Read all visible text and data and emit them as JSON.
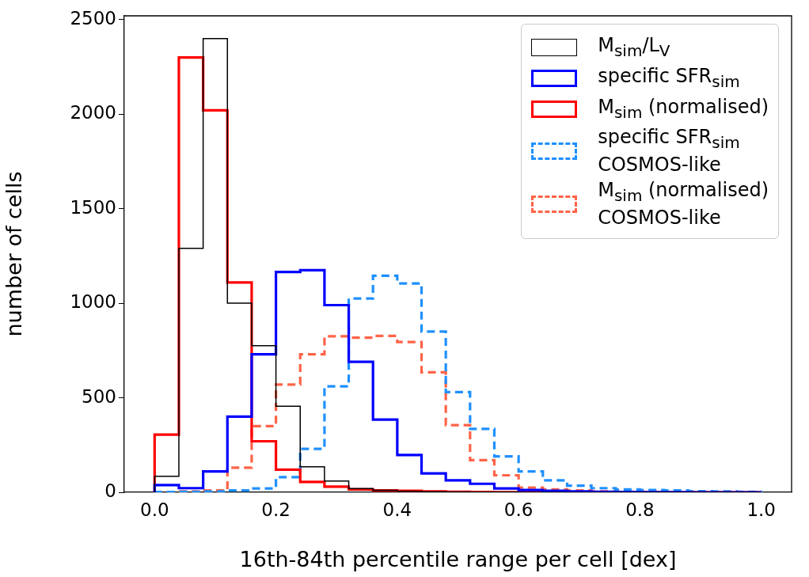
{
  "chart_data": {
    "type": "histogram",
    "xlabel": "16th-84th percentile range per cell [dex]",
    "ylabel": "number of cells",
    "bins": [
      0,
      0.04,
      0.08,
      0.12,
      0.16,
      0.2,
      0.24,
      0.28,
      0.32,
      0.36,
      0.4,
      0.44,
      0.48,
      0.52,
      0.56,
      0.6,
      0.64,
      0.68,
      0.72,
      0.76,
      0.8,
      0.84,
      0.88,
      0.92,
      0.96,
      1.0
    ],
    "series": [
      {
        "name": "M$_{sim}$/L$_{V}$",
        "color": "#000000",
        "line_style": "solid",
        "values": [
          85,
          1290,
          2400,
          1000,
          775,
          455,
          135,
          60,
          20,
          10,
          5,
          3,
          2,
          1,
          1,
          0,
          0,
          0,
          0,
          0,
          0,
          0,
          0,
          0,
          0
        ]
      },
      {
        "name": "specific SFR$_{sim}$",
        "color": "#0000ff",
        "line_style": "solid",
        "values": [
          38,
          22,
          110,
          400,
          730,
          1165,
          1175,
          990,
          690,
          385,
          197,
          100,
          63,
          45,
          20,
          12,
          8,
          5,
          3,
          2,
          1,
          1,
          0,
          0,
          0
        ]
      },
      {
        "name": "M$_{sim}$ (normalised)",
        "color": "#ff0000",
        "line_style": "solid",
        "values": [
          305,
          2300,
          2020,
          1110,
          270,
          120,
          55,
          30,
          15,
          10,
          8,
          5,
          3,
          2,
          1,
          1,
          0,
          0,
          0,
          0,
          0,
          0,
          0,
          0,
          0
        ]
      },
      {
        "name": "specific SFR$_{sim}$\nCOSMOS-like",
        "color": "#1e90ff",
        "line_style": "dashed",
        "values": [
          2,
          3,
          5,
          10,
          20,
          80,
          230,
          560,
          1025,
          1145,
          1105,
          850,
          530,
          335,
          190,
          110,
          63,
          35,
          22,
          15,
          12,
          10,
          6,
          5,
          3
        ]
      },
      {
        "name": "M$_{sim}$ (normalised)\nCOSMOS-like",
        "color": "#ff6347",
        "line_style": "dashed",
        "values": [
          2,
          5,
          10,
          130,
          350,
          570,
          730,
          825,
          818,
          827,
          795,
          635,
          355,
          170,
          90,
          25,
          15,
          10,
          5,
          4,
          3,
          2,
          1,
          1,
          0
        ]
      }
    ],
    "xlim": [
      -0.05,
      1.05
    ],
    "ylim": [
      0,
      2520
    ],
    "xticks": [
      {
        "value": 0,
        "label": "0.0"
      },
      0.2,
      0.4,
      0.6,
      0.8,
      {
        "value": 1,
        "label": "1.0"
      }
    ],
    "yticks": [
      0,
      500,
      1000,
      1500,
      2000,
      2500
    ],
    "grid": false,
    "legend": "top right"
  }
}
